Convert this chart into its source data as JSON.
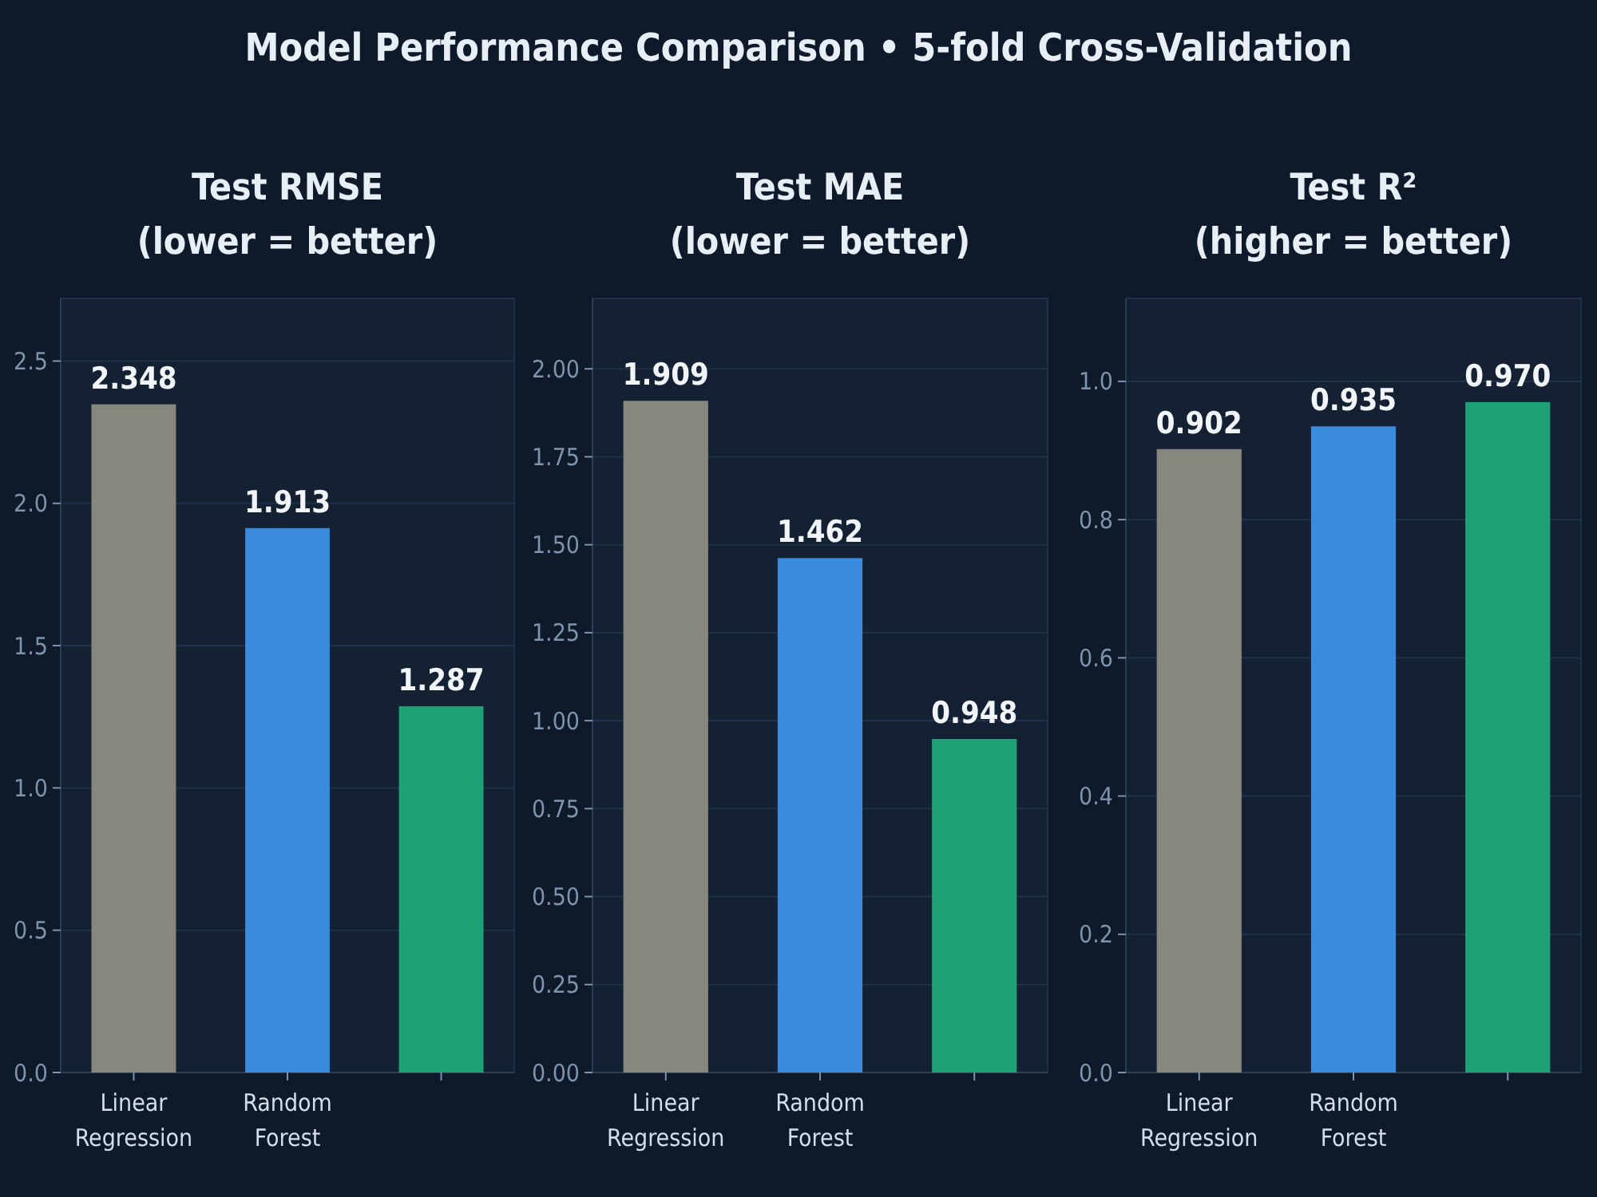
{
  "chart_data": [
    {
      "type": "bar",
      "title": "Test RMSE\n(lower = better)",
      "annotations": [
        "Model Performance Comparison  •  5-fold Cross-Validation"
      ],
      "categories": [
        "Linear Regression",
        "Random Forest",
        null
      ],
      "values": [
        2.348,
        1.913,
        1.287
      ],
      "colors": [
        "#878780",
        "#3a8ade",
        "#1fa077"
      ],
      "data_labels": true,
      "ylim": [
        0,
        2.72
      ],
      "yticks": [
        {
          "value": 0,
          "label": "0.0"
        },
        {
          "value": 0.5,
          "label": "0.5"
        },
        {
          "value": 1,
          "label": "1.0"
        },
        {
          "value": 1.5,
          "label": "1.5"
        },
        {
          "value": 2,
          "label": "2.0"
        },
        {
          "value": 2.5,
          "label": "2.5"
        }
      ],
      "grid": "y"
    },
    {
      "type": "bar",
      "title": "Test MAE\n(lower = better)",
      "categories": [
        "Linear Regression",
        "Random Forest",
        null
      ],
      "values": [
        1.909,
        1.462,
        0.948
      ],
      "colors": [
        "#878780",
        "#3a8ade",
        "#1fa077"
      ],
      "data_labels": true,
      "ylim": [
        0,
        2.2
      ],
      "yticks": [
        {
          "value": 0,
          "label": "0.00"
        },
        {
          "value": 0.25,
          "label": "0.25"
        },
        {
          "value": 0.5,
          "label": "0.50"
        },
        {
          "value": 0.75,
          "label": "0.75"
        },
        {
          "value": 1,
          "label": "1.00"
        },
        {
          "value": 1.25,
          "label": "1.25"
        },
        {
          "value": 1.5,
          "label": "1.50"
        },
        {
          "value": 1.75,
          "label": "1.75"
        },
        {
          "value": 2,
          "label": "2.00"
        }
      ],
      "grid": "y"
    },
    {
      "type": "bar",
      "title": "Test R²\n(higher = better)",
      "categories": [
        "Linear Regression",
        "Random Forest",
        null
      ],
      "values": [
        0.902,
        0.935,
        0.97
      ],
      "value_labels": [
        "0.902",
        "0.935",
        "0.970"
      ],
      "colors": [
        "#878780",
        "#3a8ade",
        "#1fa077"
      ],
      "ylim": [
        0,
        1.12
      ],
      "yticks": [
        {
          "value": 0,
          "label": "0.0"
        },
        {
          "value": 0.2,
          "label": "0.2"
        },
        {
          "value": 0.4,
          "label": "0.4"
        },
        {
          "value": 0.6,
          "label": "0.6"
        },
        {
          "value": 0.8,
          "label": "0.8"
        },
        {
          "value": 1,
          "label": "1.0"
        }
      ],
      "grid": "y"
    }
  ]
}
